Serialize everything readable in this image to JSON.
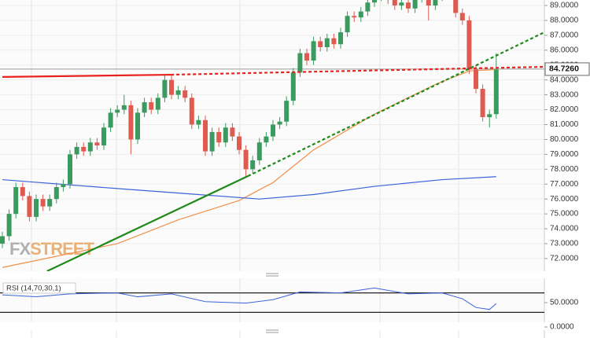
{
  "chart_data": {
    "type": "candlestick",
    "open": [
      73.0,
      73.5,
      75.0,
      76.8,
      76.2,
      74.8,
      76.0,
      75.5,
      76.0,
      76.8,
      77.0,
      79.0,
      79.5,
      79.2,
      79.8,
      79.6,
      80.8,
      81.8,
      82.0,
      82.3,
      80.0,
      81.8,
      82.5,
      82.0,
      82.8,
      84.0,
      83.0,
      83.3,
      82.8,
      81.0,
      81.3,
      79.2,
      80.5,
      79.8,
      80.8,
      80.2,
      79.3,
      78.0,
      78.6,
      79.8,
      80.2,
      81.0,
      81.2,
      82.6,
      84.5,
      85.8,
      85.3,
      86.6,
      86.2,
      86.8,
      86.4,
      87.2,
      88.3,
      88.2,
      88.6,
      89.2,
      89.6,
      90.0,
      89.4,
      89.0,
      89.2,
      88.8,
      89.5,
      90.0,
      89.0,
      89.6,
      90.2,
      89.8,
      88.5,
      88.0,
      84.7,
      83.4,
      81.5,
      81.7
    ],
    "high": [
      73.8,
      75.3,
      77.1,
      77.1,
      76.5,
      76.3,
      76.3,
      76.3,
      77.1,
      77.3,
      79.3,
      79.8,
      79.8,
      80.1,
      80.1,
      81.1,
      82.1,
      82.3,
      83.0,
      82.6,
      82.1,
      82.8,
      82.8,
      83.1,
      84.3,
      84.3,
      83.6,
      83.6,
      83.1,
      81.6,
      81.6,
      80.8,
      80.8,
      81.1,
      81.1,
      80.5,
      79.6,
      78.9,
      80.1,
      80.5,
      81.3,
      81.5,
      82.9,
      84.8,
      86.1,
      86.1,
      86.9,
      86.9,
      87.1,
      87.1,
      87.5,
      88.6,
      88.6,
      88.9,
      89.5,
      89.9,
      90.3,
      90.3,
      89.7,
      89.5,
      89.5,
      89.8,
      90.3,
      90.3,
      89.9,
      90.5,
      90.5,
      90.1,
      88.8,
      88.3,
      85.0,
      83.7,
      82.0,
      85.8
    ],
    "low": [
      72.7,
      73.2,
      74.7,
      75.9,
      74.5,
      74.5,
      75.2,
      75.2,
      75.7,
      76.5,
      76.7,
      78.7,
      78.9,
      78.9,
      79.3,
      79.3,
      80.5,
      81.5,
      81.7,
      79.0,
      79.7,
      81.5,
      81.7,
      81.7,
      82.5,
      82.7,
      82.7,
      82.5,
      80.7,
      80.7,
      78.9,
      78.9,
      79.5,
      79.5,
      79.9,
      79.0,
      77.5,
      77.7,
      78.3,
      79.5,
      79.9,
      80.7,
      80.9,
      82.3,
      84.2,
      85.0,
      85.0,
      85.9,
      85.9,
      86.1,
      86.1,
      86.9,
      87.9,
      87.9,
      88.3,
      88.9,
      89.3,
      89.1,
      88.7,
      88.7,
      88.5,
      88.5,
      89.2,
      88.0,
      88.7,
      89.3,
      89.5,
      88.2,
      87.7,
      84.4,
      83.1,
      81.2,
      80.8,
      81.4
    ],
    "close": [
      73.5,
      75.0,
      76.8,
      76.2,
      74.8,
      76.0,
      75.5,
      76.0,
      76.8,
      77.0,
      79.0,
      79.5,
      79.2,
      79.8,
      79.6,
      80.8,
      81.8,
      82.0,
      82.3,
      80.0,
      81.8,
      82.5,
      82.0,
      82.8,
      84.0,
      83.0,
      83.3,
      82.8,
      81.0,
      81.3,
      79.2,
      80.5,
      79.8,
      80.8,
      80.2,
      79.3,
      78.0,
      78.6,
      79.8,
      80.2,
      81.0,
      81.2,
      82.6,
      84.5,
      85.8,
      85.3,
      86.6,
      86.2,
      86.8,
      86.4,
      87.2,
      88.3,
      88.2,
      88.6,
      89.2,
      89.6,
      90.0,
      89.4,
      89.0,
      89.2,
      88.8,
      89.5,
      90.0,
      89.0,
      89.6,
      90.2,
      89.8,
      88.5,
      88.0,
      84.7,
      83.4,
      81.5,
      81.7,
      84.7
    ],
    "up_color": "#3b9a5e",
    "down_color": "#df5b4f",
    "ylim": [
      71.15,
      89.37
    ],
    "yticks": [
      {
        "value": 72,
        "label": "72.0000"
      },
      {
        "value": 73,
        "label": "73.0000"
      },
      {
        "value": 74,
        "label": "74.0000"
      },
      {
        "value": 75,
        "label": "75.0000"
      },
      {
        "value": 76,
        "label": "76.0000"
      },
      {
        "value": 77,
        "label": "77.0000"
      },
      {
        "value": 78,
        "label": "78.0000"
      },
      {
        "value": 79,
        "label": "79.0000"
      },
      {
        "value": 80,
        "label": "80.0000"
      },
      {
        "value": 81,
        "label": "81.0000"
      },
      {
        "value": 82,
        "label": "82.0000"
      },
      {
        "value": 83,
        "label": "83.0000"
      },
      {
        "value": 84,
        "label": "84.0000"
      },
      {
        "value": 85,
        "label": "85.0000"
      },
      {
        "value": 86,
        "label": "86.0000"
      },
      {
        "value": 87,
        "label": "87.0000"
      },
      {
        "value": 88,
        "label": "88.0000"
      },
      {
        "value": 89,
        "label": "89.0000"
      }
    ],
    "grid": true,
    "last_price": {
      "value": 84.726,
      "label": "84.7260"
    },
    "moving_averages": [
      {
        "color": "#f0904a",
        "x": [
          0,
          17,
          26,
          35,
          40,
          46,
          55,
          64,
          69,
          73
        ],
        "values": [
          71.4,
          73.0,
          74.6,
          75.9,
          77.1,
          79.3,
          81.7,
          83.7,
          84.6,
          84.7
        ]
      },
      {
        "color": "#3b63d9",
        "x": [
          0,
          17,
          29,
          38,
          46,
          55,
          65,
          73
        ],
        "values": [
          77.3,
          76.7,
          76.3,
          76.0,
          76.3,
          76.85,
          77.3,
          77.5
        ]
      }
    ],
    "trendlines": [
      {
        "color": "#e8231f",
        "style": "solid",
        "x": [
          0,
          24.9
        ],
        "values": [
          84.2,
          84.35
        ]
      },
      {
        "color": "#e8231f",
        "style": "dotted",
        "x": [
          24.9,
          80.1
        ],
        "values": [
          84.35,
          84.88
        ]
      },
      {
        "color": "#1f8a1a",
        "style": "solid",
        "x": [
          6.6,
          36.3
        ],
        "values": [
          71.15,
          77.54
        ]
      },
      {
        "color": "#1f8a1a",
        "style": "dotted",
        "x": [
          36.3,
          80.1
        ],
        "values": [
          77.54,
          87.2
        ]
      }
    ],
    "watermark": [
      "FX",
      "STREET"
    ],
    "rsi": {
      "label": "RSI (14,70,30,1)",
      "color": "#3b63d9",
      "ylim": [
        0,
        100
      ],
      "yticks": [
        {
          "value": 50,
          "label": "50.0000"
        },
        {
          "value": 0,
          "label": "0.0000"
        }
      ],
      "levels": [
        70,
        30
      ],
      "x": [
        0,
        5,
        10,
        17,
        20,
        25,
        30,
        36,
        40,
        44,
        50,
        55,
        60,
        65,
        68,
        70,
        72,
        73
      ],
      "values": [
        66,
        62,
        68,
        70,
        62,
        68,
        52,
        49,
        56,
        72,
        70,
        80,
        68,
        70,
        58,
        40,
        36,
        48
      ]
    }
  }
}
